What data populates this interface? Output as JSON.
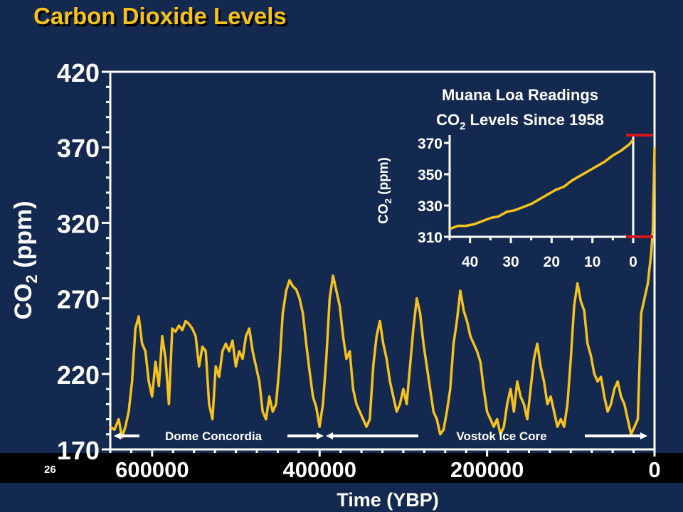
{
  "slide": {
    "title": "Carbon Dioxide Levels",
    "page_number": "26"
  },
  "colors": {
    "background": "#14294f",
    "series": "#f6c21b",
    "title": "#f6c21b",
    "axis": "#ffffff",
    "inset_marker": "#d8151b",
    "band": "#000000"
  },
  "chart_data": [
    {
      "type": "line",
      "title": "",
      "xlabel": "Time (YBP)",
      "ylabel_main": "CO",
      "ylabel_sub": "2",
      "ylabel_rest": " (ppm)",
      "xlim": [
        650000,
        0
      ],
      "ylim": [
        170,
        420
      ],
      "x_tick_labels": [
        "600000",
        "400000",
        "200000",
        "0"
      ],
      "x_tick_values": [
        600000,
        400000,
        200000,
        0
      ],
      "y_tick_labels": [
        "170",
        "220",
        "270",
        "320",
        "370",
        "420"
      ],
      "y_tick_values": [
        170,
        220,
        270,
        320,
        370,
        420
      ],
      "grid": false,
      "annotations": {
        "dome": "Dome Concordia",
        "vostok": "Vostok Ice Core",
        "dome_range": [
          650000,
          420000
        ],
        "vostok_range": [
          400000,
          0
        ]
      },
      "series": [
        {
          "x": [
            650000,
            645000,
            640000,
            636000,
            632000,
            628000,
            624000,
            620000,
            616000,
            612000,
            608000,
            604000,
            600000,
            596000,
            592000,
            588000,
            584000,
            580000,
            576000,
            572000,
            568000,
            564000,
            560000,
            556000,
            552000,
            548000,
            544000,
            540000,
            536000,
            532000,
            528000,
            524000,
            520000,
            516000,
            512000,
            508000,
            504000,
            500000,
            496000,
            492000,
            488000,
            484000,
            480000,
            476000,
            472000,
            468000,
            464000,
            460000,
            456000,
            452000,
            448000,
            444000,
            440000,
            436000,
            432000,
            428000,
            424000,
            420000,
            416000,
            412000,
            408000,
            404000,
            400000,
            396000,
            392000,
            388000,
            384000,
            380000,
            376000,
            372000,
            368000,
            364000,
            360000,
            356000,
            352000,
            348000,
            344000,
            340000,
            336000,
            332000,
            328000,
            324000,
            320000,
            316000,
            312000,
            308000,
            304000,
            300000,
            296000,
            292000,
            288000,
            284000,
            280000,
            276000,
            272000,
            268000,
            264000,
            260000,
            256000,
            252000,
            248000,
            244000,
            240000,
            236000,
            232000,
            228000,
            224000,
            220000,
            216000,
            212000,
            208000,
            204000,
            200000,
            196000,
            192000,
            188000,
            184000,
            180000,
            176000,
            172000,
            168000,
            164000,
            160000,
            156000,
            152000,
            148000,
            144000,
            140000,
            136000,
            132000,
            128000,
            124000,
            120000,
            116000,
            112000,
            108000,
            104000,
            100000,
            96000,
            92000,
            88000,
            84000,
            80000,
            76000,
            72000,
            68000,
            64000,
            60000,
            56000,
            52000,
            48000,
            44000,
            40000,
            36000,
            32000,
            28000,
            24000,
            20000,
            16000,
            12000,
            8000,
            4000,
            2000,
            0
          ],
          "y": [
            185,
            183,
            190,
            178,
            185,
            195,
            215,
            250,
            258,
            240,
            235,
            215,
            205,
            228,
            212,
            245,
            230,
            200,
            250,
            248,
            252,
            249,
            255,
            253,
            250,
            245,
            225,
            238,
            235,
            200,
            190,
            225,
            218,
            235,
            240,
            235,
            242,
            225,
            235,
            230,
            245,
            250,
            235,
            225,
            215,
            195,
            190,
            205,
            195,
            200,
            225,
            260,
            275,
            282,
            278,
            276,
            270,
            260,
            240,
            222,
            205,
            198,
            185,
            200,
            230,
            270,
            285,
            275,
            265,
            245,
            230,
            235,
            210,
            200,
            195,
            190,
            185,
            190,
            225,
            245,
            255,
            240,
            230,
            215,
            205,
            195,
            200,
            210,
            200,
            225,
            250,
            270,
            260,
            240,
            225,
            210,
            195,
            190,
            180,
            183,
            195,
            210,
            240,
            255,
            275,
            262,
            255,
            245,
            240,
            235,
            228,
            210,
            195,
            190,
            185,
            190,
            180,
            185,
            200,
            210,
            195,
            215,
            205,
            200,
            190,
            210,
            230,
            240,
            225,
            215,
            200,
            205,
            195,
            185,
            190,
            185,
            200,
            230,
            265,
            280,
            268,
            262,
            240,
            232,
            220,
            215,
            218,
            205,
            195,
            200,
            210,
            215,
            205,
            200,
            190,
            180,
            185,
            190,
            260,
            270,
            280,
            300,
            315,
            370
          ]
        }
      ]
    },
    {
      "type": "line",
      "title_line1": "Muana Loa Readings",
      "title_line2_main": "CO",
      "title_line2_sub": "2",
      "title_line2_rest": " Levels Since 1958",
      "xlabel": "",
      "ylabel_main": "CO",
      "ylabel_sub": "2",
      "ylabel_rest": " (ppm)",
      "xlim": [
        45,
        0
      ],
      "ylim": [
        310,
        375
      ],
      "x_tick_labels": [
        "40",
        "30",
        "20",
        "10",
        "0"
      ],
      "x_tick_values": [
        40,
        30,
        20,
        10,
        0
      ],
      "y_tick_labels": [
        "310",
        "330",
        "350",
        "370"
      ],
      "y_tick_values": [
        310,
        330,
        350,
        370
      ],
      "grid": false,
      "series": [
        {
          "x": [
            45,
            43,
            41,
            39,
            37,
            35,
            33,
            31,
            29,
            27,
            25,
            23,
            21,
            19,
            17,
            15,
            13,
            11,
            9,
            7,
            5,
            3,
            1,
            0
          ],
          "y": [
            315,
            317,
            317,
            318,
            320,
            322,
            323,
            326,
            327,
            329,
            331,
            334,
            337,
            340,
            342,
            346,
            349,
            352,
            355,
            358,
            362,
            365,
            369,
            372
          ]
        }
      ]
    }
  ]
}
